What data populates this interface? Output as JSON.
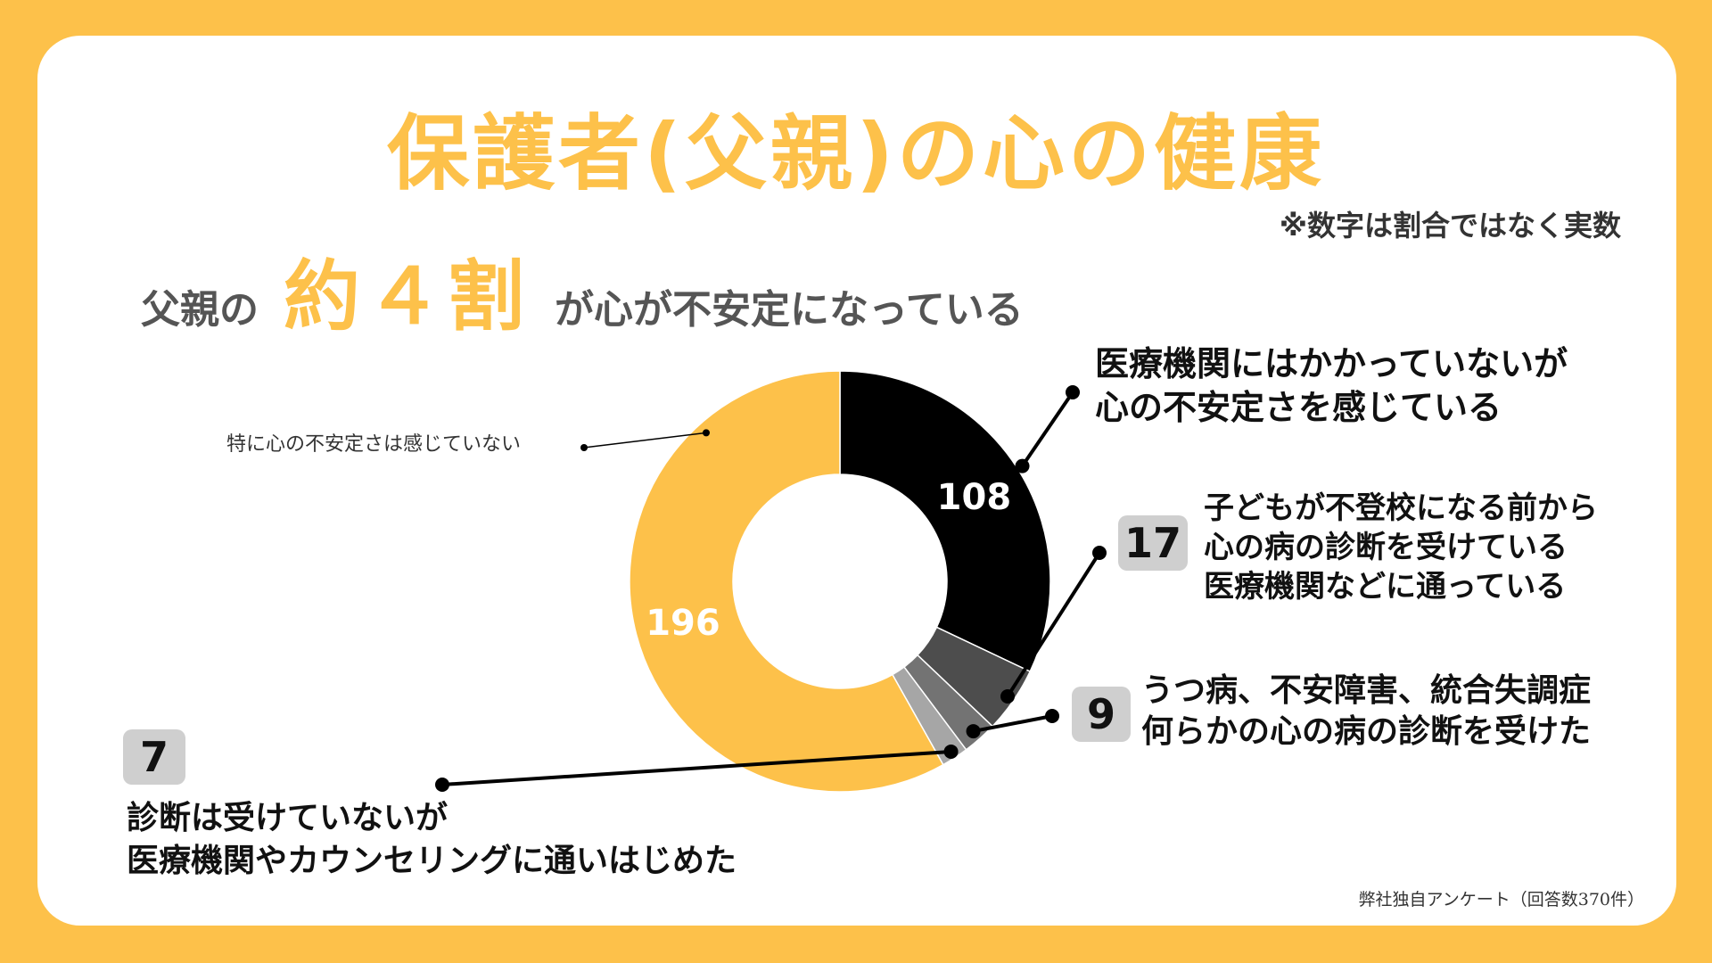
{
  "title": "保護者(父親)の心の健康",
  "note": "※数字は割合ではなく実数",
  "subtitle": {
    "pre": "父親の",
    "highlight": "約４割",
    "post": "が心が不安定になっている"
  },
  "source": "弊社独自アンケート（回答数370件）",
  "colors": {
    "background": "#FDC14A",
    "accent": "#FDC14A",
    "card": "#FFFFFF"
  },
  "chart_data": {
    "type": "pie",
    "variant": "donut",
    "total": 370,
    "slices": [
      {
        "name": "医療機関にはかかっていないが心の不安定さを感じている",
        "value": 108,
        "color": "#000000",
        "label": "108"
      },
      {
        "name": "子どもが不登校になる前から心の病の診断を受けている医療機関などに通っている",
        "value": 17,
        "color": "#4D4D4D",
        "label": "17"
      },
      {
        "name": "うつ病、不安障害、統合失調症何らかの心の病の診断を受けた",
        "value": 9,
        "color": "#737373",
        "label": "9"
      },
      {
        "name": "診断は受けていないが医療機関やカウンセリングに通いはじめた",
        "value": 7,
        "color": "#A6A6A6",
        "label": "7"
      },
      {
        "name": "特に心の不安定さは感じていない",
        "value": 196,
        "color": "#FDC14A",
        "label": "196"
      }
    ]
  },
  "labels": {
    "s108": [
      "医療機関にはかかっていないが",
      "心の不安定さを感じている"
    ],
    "s17": [
      "子どもが不登校になる前から",
      "心の病の診断を受けている",
      "医療機関などに通っている"
    ],
    "s9": [
      "うつ病、不安障害、統合失調症",
      "何らかの心の病の診断を受けた"
    ],
    "s7": [
      "診断は受けていないが",
      "医療機関やカウンセリングに通いはじめた"
    ],
    "s196": "特に心の不安定さは感じていない"
  },
  "badges": {
    "s17": "17",
    "s9": "9",
    "s7": "7"
  }
}
